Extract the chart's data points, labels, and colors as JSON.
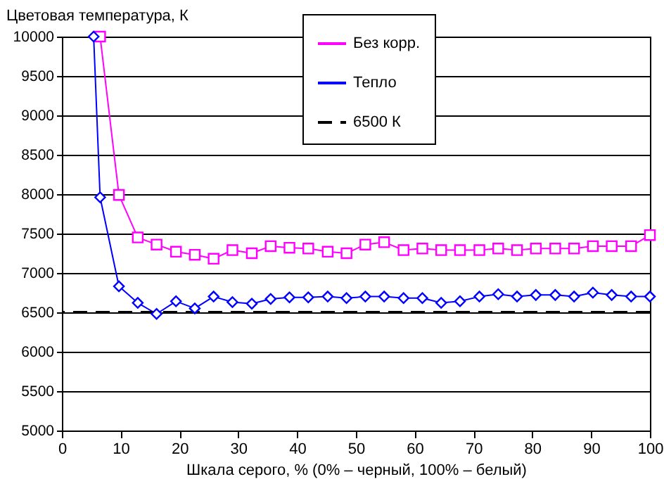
{
  "chart_data": {
    "type": "line",
    "xlabel": "Шкала серого, % (0% – черный, 100% – белый)",
    "ylabel": "Цветовая температура, К",
    "series": [
      {
        "name": "Без корр.",
        "color": "#ff00ff",
        "marker": "square",
        "x": [
          6.5,
          9.7,
          12.9,
          16.1,
          19.4,
          22.6,
          25.8,
          29.0,
          32.3,
          35.5,
          38.7,
          41.9,
          45.2,
          48.4,
          51.6,
          54.8,
          58.1,
          61.3,
          64.5,
          67.7,
          71.0,
          74.2,
          77.4,
          80.6,
          83.9,
          87.1,
          90.3,
          93.5,
          96.8,
          100
        ],
        "values": [
          10000,
          7990,
          7450,
          7360,
          7270,
          7230,
          7180,
          7290,
          7250,
          7340,
          7320,
          7310,
          7270,
          7250,
          7360,
          7390,
          7290,
          7310,
          7290,
          7290,
          7290,
          7310,
          7290,
          7310,
          7310,
          7310,
          7340,
          7340,
          7340,
          7480
        ]
      },
      {
        "name": "Тепло",
        "color": "#0000ff",
        "marker": "diamond",
        "x": [
          5.4,
          6.5,
          9.7,
          12.9,
          16.1,
          19.4,
          22.6,
          25.8,
          29.0,
          32.3,
          35.5,
          38.7,
          41.9,
          45.2,
          48.4,
          51.6,
          54.8,
          58.1,
          61.3,
          64.5,
          67.7,
          71.0,
          74.2,
          77.4,
          80.6,
          83.9,
          87.1,
          90.3,
          93.5,
          96.8,
          100
        ],
        "values": [
          10000,
          7960,
          6830,
          6620,
          6480,
          6640,
          6550,
          6700,
          6630,
          6610,
          6670,
          6690,
          6690,
          6700,
          6680,
          6700,
          6700,
          6680,
          6680,
          6620,
          6640,
          6700,
          6730,
          6700,
          6720,
          6720,
          6700,
          6750,
          6720,
          6700,
          6700
        ]
      }
    ],
    "ref_lines": [
      {
        "axis": "y",
        "value": 6500,
        "label": "6500 К",
        "color": "#000000",
        "line_style": "dashed"
      }
    ],
    "xlim": [
      0,
      100
    ],
    "xticks": [
      0,
      10,
      20,
      30,
      40,
      50,
      60,
      70,
      80,
      90,
      100
    ],
    "ylim": [
      5000,
      10000
    ],
    "yticks": [
      5000,
      5500,
      6000,
      6500,
      7000,
      7500,
      8000,
      8500,
      9000,
      9500,
      10000
    ],
    "grid": "y",
    "legend": "top right"
  }
}
